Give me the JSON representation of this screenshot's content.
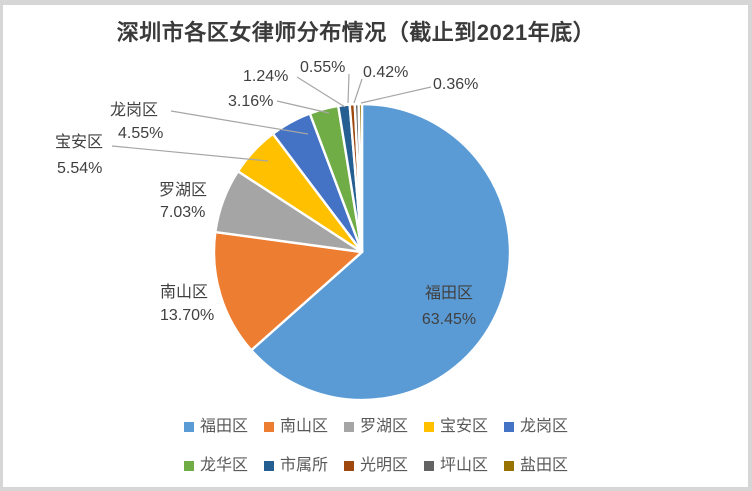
{
  "title": "深圳市各区女律师分布情况（截止到2021年底）",
  "chart_data": {
    "type": "pie",
    "title": "深圳市各区女律师分布情况（截止到2021年底）",
    "value_unit": "%",
    "direction": "clockwise",
    "start_angle_deg": 0,
    "legend_position": "bottom",
    "slices": [
      {
        "label": "福田区",
        "value": 63.45,
        "display": "63.45%",
        "color": "#5B9BD5"
      },
      {
        "label": "南山区",
        "value": 13.7,
        "display": "13.70%",
        "color": "#ED7D31"
      },
      {
        "label": "罗湖区",
        "value": 7.03,
        "display": "7.03%",
        "color": "#A5A5A5"
      },
      {
        "label": "宝安区",
        "value": 5.54,
        "display": "5.54%",
        "color": "#FFC000"
      },
      {
        "label": "龙岗区",
        "value": 4.55,
        "display": "4.55%",
        "color": "#4472C4"
      },
      {
        "label": "龙华区",
        "value": 3.16,
        "display": "3.16%",
        "color": "#70AD47"
      },
      {
        "label": "市属所",
        "value": 1.24,
        "display": "1.24%",
        "color": "#255E91"
      },
      {
        "label": "光明区",
        "value": 0.55,
        "display": "0.55%",
        "color": "#9E480E"
      },
      {
        "label": "坪山区",
        "value": 0.42,
        "display": "0.42%",
        "color": "#636363"
      },
      {
        "label": "盐田区",
        "value": 0.36,
        "display": "0.36%",
        "color": "#997300"
      }
    ],
    "legend": [
      "福田区",
      "南山区",
      "罗湖区",
      "宝安区",
      "龙岗区",
      "龙华区",
      "市属所",
      "光明区",
      "坪山区",
      "盐田区"
    ]
  },
  "colors": {
    "page_bg": "#D6D6D6",
    "canvas_bg": "#FFFFFF",
    "title_text": "#3A3A3A",
    "label_text": "#404040",
    "legend_text": "#595959",
    "leader_line": "#A6A6A6",
    "slice_border": "#FFFFFF"
  }
}
